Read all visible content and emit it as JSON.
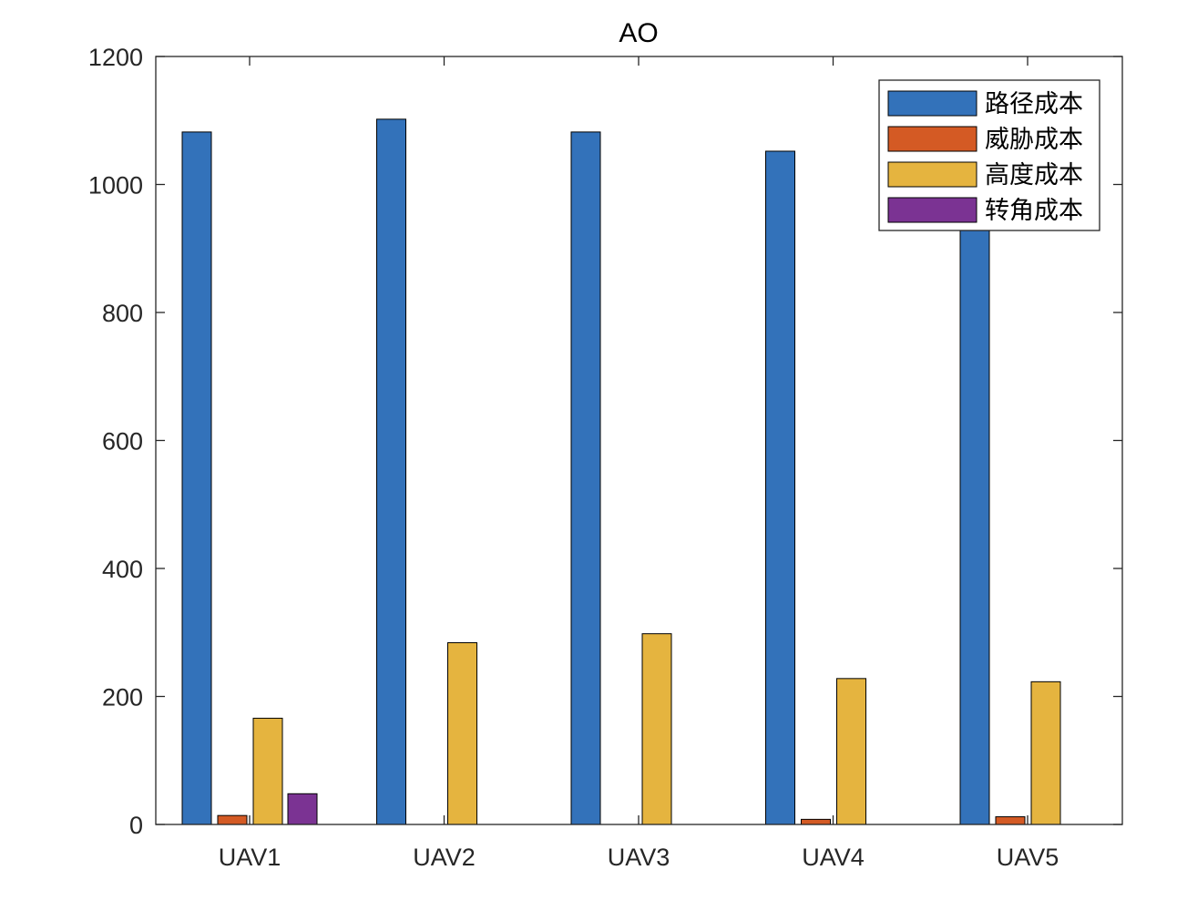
{
  "chart_data": {
    "type": "bar",
    "title": "AO",
    "xlabel": "",
    "ylabel": "",
    "categories": [
      "UAV1",
      "UAV2",
      "UAV3",
      "UAV4",
      "UAV5"
    ],
    "ylim": [
      0,
      1200
    ],
    "yticks": [
      0,
      200,
      400,
      600,
      800,
      1000,
      1200
    ],
    "yticklabels": [
      "0",
      "200",
      "400",
      "600",
      "800",
      "1000",
      "1200"
    ],
    "grid": false,
    "legend_position": "top-right",
    "series": [
      {
        "name": "路径成本",
        "color": "#3372BA",
        "values": [
          1082,
          1102,
          1082,
          1052,
          1000
        ]
      },
      {
        "name": "威胁成本",
        "color": "#D45A24",
        "values": [
          14,
          0,
          0,
          8,
          12
        ]
      },
      {
        "name": "高度成本",
        "color": "#E5B43F",
        "values": [
          166,
          284,
          298,
          228,
          223
        ]
      },
      {
        "name": "转角成本",
        "color": "#7B3393",
        "values": [
          48,
          0,
          0,
          0,
          0
        ]
      }
    ]
  }
}
